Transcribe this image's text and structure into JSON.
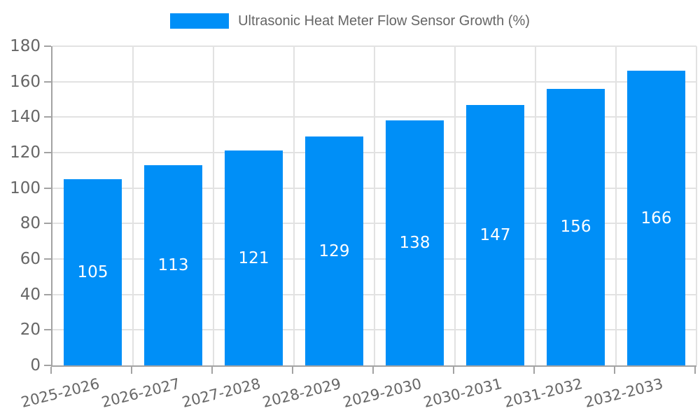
{
  "chart_data": {
    "type": "bar",
    "title": "Ultrasonic Heat Meter Flow Sensor Growth (%)",
    "categories": [
      "2025-2026",
      "2026-2027",
      "2027-2028",
      "2028-2029",
      "2029-2030",
      "2030-2031",
      "2031-2032",
      "2032-2033"
    ],
    "values": [
      105,
      113,
      121,
      129,
      138,
      147,
      156,
      166
    ],
    "xlabel": "",
    "ylabel": "",
    "ylim": [
      0,
      180
    ],
    "ytick_step": 20,
    "yticks": [
      "0",
      "20",
      "40",
      "60",
      "80",
      "100",
      "120",
      "140",
      "160",
      "180"
    ],
    "grid": "on",
    "legend_position": "top-center",
    "value_labels": "inside-center",
    "colors": {
      "bar": "#008ff7",
      "bar_label": "#ffffff",
      "axis_line": "#a3a3a3",
      "gridline": "#e2e2e2",
      "tick_text": "#666666",
      "legend_text": "#666666",
      "background": "#ffffff"
    }
  }
}
